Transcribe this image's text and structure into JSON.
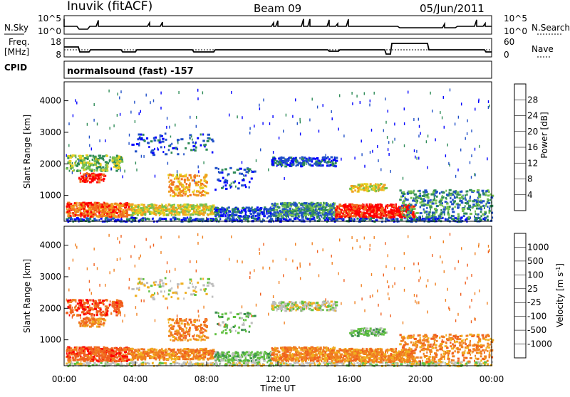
{
  "header": {
    "station": "Inuvik (fitACF)",
    "beam": "Beam 09",
    "date": "05/Jun/2011"
  },
  "sky_panel": {
    "left_label": "N.Sky",
    "right_label": "N.Search",
    "left_ticks": [
      "10^5",
      "10^0"
    ],
    "right_ticks": [
      "10^5",
      "10^0"
    ]
  },
  "freq_panel": {
    "left_label_1": "Freq.",
    "left_label_2": "[MHz]",
    "right_label": "Nave",
    "left_ticks": [
      "18",
      "8"
    ],
    "right_ticks": [
      "60",
      "0"
    ]
  },
  "cpid": {
    "label": "CPID",
    "text": "normalsound (fast) -157"
  },
  "chart_data": [
    {
      "type": "heatmap",
      "name": "power",
      "ylabel": "Slant Range [km]",
      "xlabel": "",
      "yticks": [
        "1000",
        "2000",
        "3000",
        "4000"
      ],
      "ylim": [
        180,
        4600
      ],
      "colorbar": {
        "label": "Power [dB]",
        "ticks": [
          "4",
          "8",
          "12",
          "16",
          "20",
          "24",
          "28"
        ],
        "colors": [
          "#0000ff",
          "#2050c8",
          "#2e8b57",
          "#74c050",
          "#e8d020",
          "#f0a020",
          "#f07020",
          "#ff0000"
        ]
      }
    },
    {
      "type": "heatmap",
      "name": "velocity",
      "ylabel": "Slant Range [km]",
      "xlabel": "Time UT",
      "yticks": [
        "1000",
        "2000",
        "3000",
        "4000"
      ],
      "ylim": [
        180,
        4600
      ],
      "xticks": [
        "00:00",
        "04:00",
        "08:00",
        "12:00",
        "16:00",
        "20:00",
        "00:00"
      ],
      "colorbar": {
        "label": "Velocity [m s",
        "label_sup": "-1",
        "label_end": "]",
        "ticks": [
          "1000",
          "500",
          "100",
          "25",
          "-25",
          "-100",
          "-500",
          "-1000"
        ],
        "colors": [
          "#1e3cc8",
          "#2e70c0",
          "#3c9050",
          "#60c040",
          "#bebebe",
          "#f0b020",
          "#f08020",
          "#f06020",
          "#ff0000"
        ]
      }
    }
  ]
}
